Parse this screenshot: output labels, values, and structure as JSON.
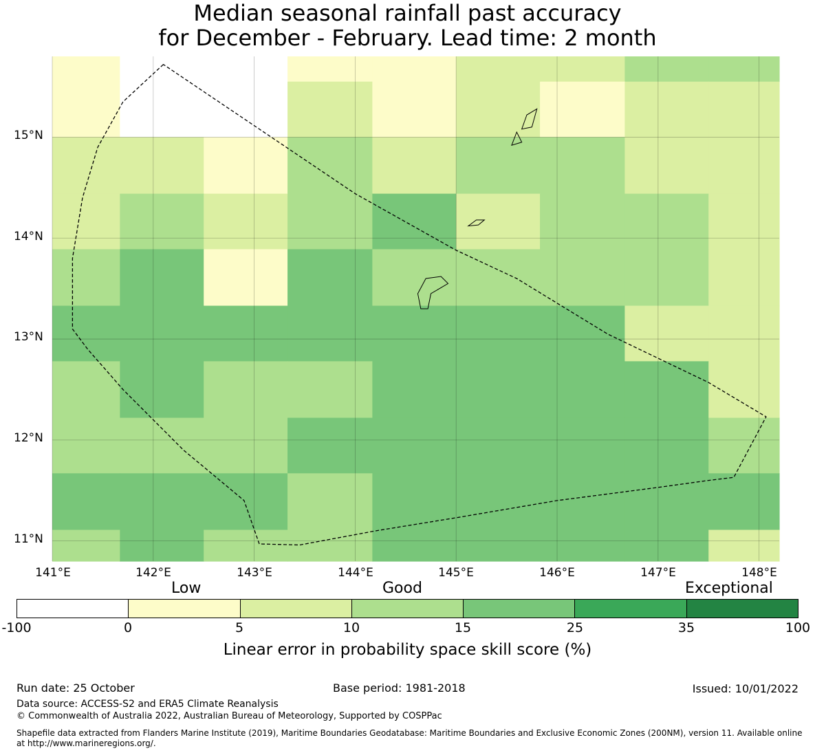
{
  "title_line1": "Median seasonal rainfall past accuracy",
  "title_line2": "for December - February. Lead time: 2 month",
  "map": {
    "lat_labels": [
      "15°N",
      "14°N",
      "13°N",
      "12°N",
      "11°N"
    ],
    "lon_labels": [
      "141°E",
      "142°E",
      "143°E",
      "144°E",
      "145°E",
      "146°E",
      "147°E",
      "148°E"
    ],
    "lon_range": [
      141.0,
      148.2
    ],
    "lat_range": [
      10.8,
      15.8
    ],
    "cell_lon_edges": [
      141.0,
      141.67,
      142.5,
      143.33,
      144.17,
      145.0,
      145.83,
      146.67,
      147.5,
      148.2
    ],
    "cell_lat_edges": [
      15.8,
      15.55,
      15.0,
      14.44,
      13.89,
      13.33,
      12.78,
      12.22,
      11.67,
      11.11,
      10.8
    ],
    "cell_classes": [
      [
        1,
        0,
        0,
        1,
        1,
        2,
        2,
        3,
        3
      ],
      [
        1,
        0,
        0,
        2,
        1,
        2,
        1,
        2,
        2
      ],
      [
        2,
        2,
        1,
        3,
        2,
        3,
        3,
        2,
        2
      ],
      [
        2,
        3,
        2,
        3,
        4,
        2,
        3,
        3,
        2
      ],
      [
        3,
        4,
        1,
        4,
        3,
        3,
        3,
        3,
        2
      ],
      [
        4,
        4,
        4,
        4,
        4,
        4,
        4,
        2,
        2
      ],
      [
        3,
        4,
        3,
        3,
        4,
        4,
        4,
        4,
        2
      ],
      [
        3,
        3,
        3,
        4,
        4,
        4,
        4,
        4,
        3
      ],
      [
        4,
        4,
        4,
        3,
        4,
        4,
        4,
        4,
        4
      ],
      [
        3,
        4,
        3,
        3,
        4,
        4,
        4,
        4,
        2
      ]
    ],
    "eez_boundary": [
      [
        142.1,
        15.72
      ],
      [
        141.7,
        15.35
      ],
      [
        141.45,
        14.9
      ],
      [
        141.3,
        14.4
      ],
      [
        141.2,
        13.8
      ],
      [
        141.2,
        13.1
      ],
      [
        141.35,
        12.9
      ],
      [
        141.7,
        12.5
      ],
      [
        142.3,
        11.9
      ],
      [
        142.9,
        11.4
      ],
      [
        143.05,
        10.97
      ],
      [
        143.45,
        10.96
      ],
      [
        144.2,
        11.1
      ],
      [
        145.0,
        11.23
      ],
      [
        146.0,
        11.4
      ],
      [
        147.0,
        11.53
      ],
      [
        147.5,
        11.6
      ],
      [
        147.75,
        11.63
      ],
      [
        148.07,
        12.23
      ],
      [
        147.5,
        12.57
      ],
      [
        146.5,
        13.05
      ],
      [
        145.6,
        13.6
      ],
      [
        145.0,
        13.88
      ],
      [
        144.0,
        14.44
      ],
      [
        142.1,
        15.72
      ]
    ],
    "islands": [
      [
        [
          144.65,
          13.3
        ],
        [
          144.62,
          13.45
        ],
        [
          144.7,
          13.6
        ],
        [
          144.85,
          13.62
        ],
        [
          144.92,
          13.55
        ],
        [
          144.75,
          13.45
        ],
        [
          144.72,
          13.3
        ]
      ],
      [
        [
          145.12,
          14.12
        ],
        [
          145.2,
          14.18
        ],
        [
          145.28,
          14.18
        ],
        [
          145.22,
          14.13
        ]
      ],
      [
        [
          145.55,
          14.92
        ],
        [
          145.6,
          15.05
        ],
        [
          145.65,
          14.95
        ]
      ],
      [
        [
          145.65,
          15.08
        ],
        [
          145.7,
          15.22
        ],
        [
          145.8,
          15.28
        ],
        [
          145.75,
          15.1
        ]
      ]
    ]
  },
  "legend": {
    "word_low": "Low",
    "word_good": "Good",
    "word_exceptional": "Exceptional",
    "colors": [
      "#ffffff",
      "#fdfcc9",
      "#dbefa2",
      "#addf8e",
      "#78c679",
      "#3aa858",
      "#238443"
    ],
    "ticks": [
      "-100",
      "0",
      "5",
      "10",
      "15",
      "25",
      "35",
      "100"
    ],
    "title": "Linear error in probability space skill score (%)"
  },
  "footer": {
    "run_date": "Run date: 25 October",
    "base_period": "Base period: 1981-2018",
    "issued": "Issued: 10/01/2022",
    "data_source": "Data source: ACCESS-S2 and ERA5 Climate Reanalysis",
    "copyright": "© Commonwealth of Australia 2022, Australian Bureau of Meteorology, Supported by COSPPac",
    "shapefile_line1": "Shapefile data extracted from Flanders Marine Institute (2019), Maritime Boundaries Geodatabase: Maritime Boundaries and Exclusive Economic Zones (200NM), version 11. Available online",
    "shapefile_line2": "at http://www.marineregions.org/."
  }
}
